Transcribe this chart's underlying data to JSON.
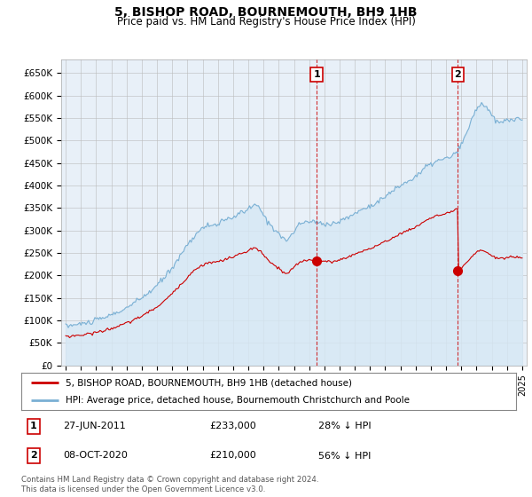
{
  "title": "5, BISHOP ROAD, BOURNEMOUTH, BH9 1HB",
  "subtitle": "Price paid vs. HM Land Registry's House Price Index (HPI)",
  "ylabel_ticks": [
    "£0",
    "£50K",
    "£100K",
    "£150K",
    "£200K",
    "£250K",
    "£300K",
    "£350K",
    "£400K",
    "£450K",
    "£500K",
    "£550K",
    "£600K",
    "£650K"
  ],
  "ytick_vals": [
    0,
    50000,
    100000,
    150000,
    200000,
    250000,
    300000,
    350000,
    400000,
    450000,
    500000,
    550000,
    600000,
    650000
  ],
  "ylim": [
    0,
    680000
  ],
  "xlim_start": 1994.7,
  "xlim_end": 2025.3,
  "hpi_color": "#7ab0d4",
  "hpi_fill_color": "#d6e8f5",
  "price_color": "#cc0000",
  "marker1_date": 2011.49,
  "marker1_price": 233000,
  "marker2_date": 2020.77,
  "marker2_price": 210000,
  "legend_property": "5, BISHOP ROAD, BOURNEMOUTH, BH9 1HB (detached house)",
  "legend_hpi": "HPI: Average price, detached house, Bournemouth Christchurch and Poole",
  "table_row1": [
    "1",
    "27-JUN-2011",
    "£233,000",
    "28% ↓ HPI"
  ],
  "table_row2": [
    "2",
    "08-OCT-2020",
    "£210,000",
    "56% ↓ HPI"
  ],
  "footer": "Contains HM Land Registry data © Crown copyright and database right 2024.\nThis data is licensed under the Open Government Licence v3.0.",
  "background_color": "#ffffff",
  "plot_bg_color": "#e8f0f8"
}
